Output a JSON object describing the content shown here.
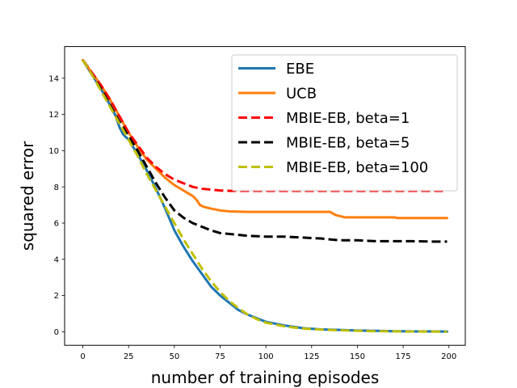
{
  "chart_data": {
    "type": "line",
    "xlabel": "number of training episodes",
    "ylabel": "squared error",
    "xlim": [
      -9.95,
      208.95
    ],
    "ylim": [
      -0.75,
      15.75
    ],
    "xticks": [
      0,
      25,
      50,
      75,
      100,
      125,
      150,
      175,
      200
    ],
    "yticks": [
      0,
      2,
      4,
      6,
      8,
      10,
      12,
      14
    ],
    "grid": false,
    "legend_position": "top-right",
    "series": [
      {
        "name": "EBE",
        "color": "#1f77b4",
        "style": "solid",
        "x": [
          0,
          5,
          10,
          15,
          18,
          20,
          22,
          25,
          30,
          35,
          40,
          45,
          50,
          55,
          60,
          65,
          70,
          75,
          80,
          85,
          90,
          95,
          100,
          110,
          120,
          130,
          140,
          150,
          160,
          170,
          180,
          190,
          199
        ],
        "y": [
          15.0,
          14.2,
          13.4,
          12.5,
          11.9,
          11.3,
          10.9,
          10.6,
          9.8,
          8.9,
          7.9,
          6.8,
          5.6,
          4.7,
          3.9,
          3.2,
          2.5,
          2.0,
          1.6,
          1.2,
          0.95,
          0.75,
          0.55,
          0.35,
          0.2,
          0.13,
          0.1,
          0.07,
          0.05,
          0.03,
          0.02,
          0.02,
          0.01
        ]
      },
      {
        "name": "UCB",
        "color": "#ff7f0e",
        "style": "solid",
        "x": [
          0,
          5,
          10,
          15,
          20,
          25,
          30,
          35,
          40,
          45,
          50,
          55,
          60,
          62,
          64,
          66,
          70,
          75,
          80,
          90,
          100,
          110,
          120,
          130,
          135,
          138,
          140,
          143,
          150,
          160,
          170,
          172,
          180,
          190,
          199
        ],
        "y": [
          15.0,
          14.3,
          13.6,
          12.8,
          11.9,
          11.0,
          10.2,
          9.5,
          9.0,
          8.5,
          8.1,
          7.8,
          7.5,
          7.3,
          7.0,
          6.9,
          6.8,
          6.7,
          6.65,
          6.62,
          6.62,
          6.62,
          6.62,
          6.62,
          6.62,
          6.45,
          6.4,
          6.32,
          6.32,
          6.32,
          6.32,
          6.28,
          6.28,
          6.28,
          6.28
        ]
      },
      {
        "name": "MBIE-EB, beta=1",
        "color": "#ff0000",
        "style": "dashed",
        "x": [
          0,
          5,
          10,
          15,
          20,
          25,
          30,
          35,
          40,
          45,
          50,
          55,
          60,
          65,
          70,
          75,
          80,
          90,
          100,
          125,
          150,
          175,
          199
        ],
        "y": [
          15.0,
          14.3,
          13.6,
          12.8,
          11.9,
          11.0,
          10.3,
          9.6,
          9.1,
          8.7,
          8.4,
          8.2,
          8.0,
          7.9,
          7.85,
          7.8,
          7.78,
          7.78,
          7.78,
          7.78,
          7.78,
          7.78,
          7.78
        ]
      },
      {
        "name": "MBIE-EB, beta=5",
        "color": "#000000",
        "style": "dashed",
        "x": [
          0,
          5,
          10,
          15,
          20,
          25,
          30,
          35,
          40,
          45,
          50,
          55,
          60,
          65,
          70,
          75,
          80,
          90,
          100,
          110,
          120,
          130,
          140,
          150,
          160,
          170,
          180,
          190,
          199
        ],
        "y": [
          15.0,
          14.2,
          13.4,
          12.5,
          11.6,
          10.8,
          10.0,
          9.1,
          8.2,
          7.4,
          6.7,
          6.3,
          6.0,
          5.8,
          5.6,
          5.45,
          5.4,
          5.3,
          5.25,
          5.25,
          5.2,
          5.15,
          5.05,
          5.05,
          5.0,
          5.0,
          5.0,
          4.98,
          4.98
        ]
      },
      {
        "name": "MBIE-EB, beta=100",
        "color": "#bfbf00",
        "style": "dashed",
        "x": [
          0,
          5,
          10,
          15,
          20,
          25,
          30,
          35,
          40,
          45,
          50,
          55,
          60,
          65,
          70,
          75,
          80,
          85,
          90,
          95,
          100,
          110,
          120,
          130,
          140,
          150,
          160,
          170,
          180,
          190,
          199
        ],
        "y": [
          15.0,
          14.2,
          13.3,
          12.4,
          11.5,
          10.6,
          9.7,
          8.7,
          7.8,
          6.9,
          6.0,
          5.1,
          4.3,
          3.5,
          2.8,
          2.2,
          1.7,
          1.3,
          0.95,
          0.7,
          0.5,
          0.3,
          0.18,
          0.12,
          0.08,
          0.05,
          0.03,
          0.02,
          0.01,
          0.01,
          0.0
        ]
      }
    ]
  }
}
